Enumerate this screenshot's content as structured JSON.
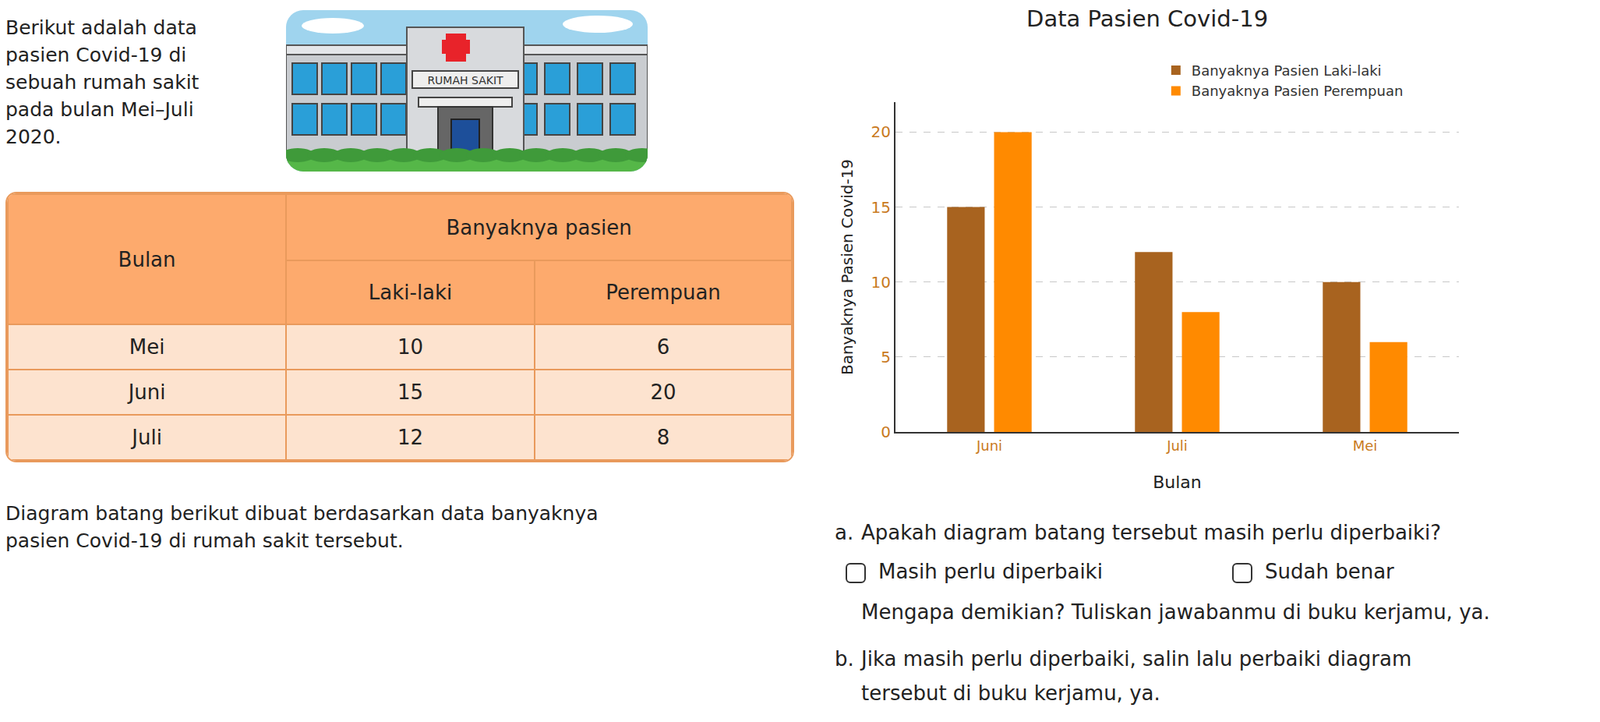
{
  "intro": {
    "lines": [
      "Berikut adalah data",
      "pasien Covid-19 di",
      "sebuah rumah sakit",
      "pada bulan Mei–Juli",
      "2020."
    ]
  },
  "image_label": "RUMAH SAKIT",
  "table": {
    "header": {
      "first": "Bulan",
      "group": "Banyaknya pasien",
      "sub": [
        "Laki-laki",
        "Perempuan"
      ]
    },
    "rows": [
      [
        "Mei",
        10,
        6
      ],
      [
        "Juni",
        15,
        20
      ],
      [
        "Juli",
        12,
        8
      ]
    ]
  },
  "caption": {
    "lines": [
      "Diagram batang berikut dibuat berdasarkan data banyaknya",
      "pasien Covid-19 di rumah sakit tersebut."
    ]
  },
  "questions": [
    {
      "label": "a.",
      "lines": [
        "Apakah diagram batang tersebut masih perlu diperbaiki?"
      ],
      "options": [
        "Masih perlu diperbaiki",
        "Sudah benar"
      ],
      "followup": "Mengapa demikian? Tuliskan jawabanmu di buku kerjamu, ya."
    },
    {
      "label": "b.",
      "lines": [
        "Jika masih perlu diperbaiki, salin lalu perbaiki diagram",
        "tersebut di buku kerjamu, ya."
      ]
    }
  ],
  "chart_data": {
    "type": "bar",
    "title": "Data Pasien Covid-19",
    "x_label": "Bulan",
    "y_label": "Banyaknya Pasien Covid-19",
    "categories": [
      "Juni",
      "Juli",
      "Mei"
    ],
    "series": [
      {
        "name": "Banyaknya Pasien Laki-laki",
        "color": "#a8631f",
        "values": [
          15,
          12,
          10
        ]
      },
      {
        "name": "Banyaknya Pasien Perempuan",
        "color": "#ff8a00",
        "values": [
          20,
          8,
          6
        ]
      }
    ],
    "ylim": [
      0,
      22
    ],
    "yticks": [
      0,
      5,
      10,
      15,
      20
    ],
    "grid": true,
    "legend": "top"
  }
}
